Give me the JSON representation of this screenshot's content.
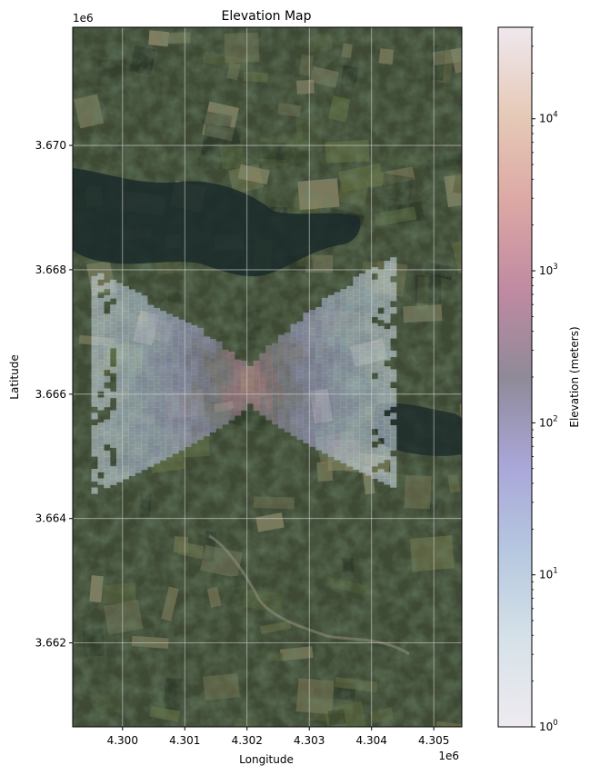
{
  "chart_data": {
    "type": "heatmap",
    "title": "Elevation Map",
    "xlabel": "Longitude",
    "ylabel": "Latitude",
    "x_offset_label": "1e6",
    "y_offset_label": "1e6",
    "xlim": [
      4.2992,
      4.30545
    ],
    "ylim": [
      3.66065,
      3.6719
    ],
    "x_ticks": [
      4.3,
      4.301,
      4.302,
      4.303,
      4.304,
      4.305
    ],
    "x_tick_labels": [
      "4.300",
      "4.301",
      "4.302",
      "4.303",
      "4.304",
      "4.305"
    ],
    "y_ticks": [
      3.662,
      3.664,
      3.666,
      3.668,
      3.67
    ],
    "y_tick_labels": [
      "3.662",
      "3.664",
      "3.666",
      "3.668",
      "3.670"
    ],
    "grid": true,
    "background": "satellite imagery",
    "colorbar": {
      "label": "Elevation (meters)",
      "scale": "log",
      "range": [
        1,
        40000
      ],
      "ticks": [
        {
          "value": 1,
          "base": "10",
          "exp": "0"
        },
        {
          "value": 10,
          "base": "10",
          "exp": "1"
        },
        {
          "value": 100,
          "base": "10",
          "exp": "2"
        },
        {
          "value": 1000,
          "base": "10",
          "exp": "3"
        },
        {
          "value": 10000,
          "base": "10",
          "exp": "4"
        }
      ],
      "colormap": [
        "#eeeaf0",
        "#d6e2e8",
        "#b6c8e0",
        "#a9a6d8",
        "#8f8a98",
        "#c08aa2",
        "#dca8a4",
        "#e6cab8",
        "#efe8ee"
      ]
    },
    "overlay": {
      "shape": "bowtie",
      "center": [
        4.302,
        3.6661
      ],
      "peak_elevation": 10000,
      "edge_elevation": 5,
      "left_lobe": {
        "x_min": 4.2995,
        "y_max": 3.6679,
        "y_min": 3.6644
      },
      "right_lobe": {
        "x_max": 4.3043,
        "y_max": 3.6682,
        "y_min": 3.6645
      }
    }
  }
}
